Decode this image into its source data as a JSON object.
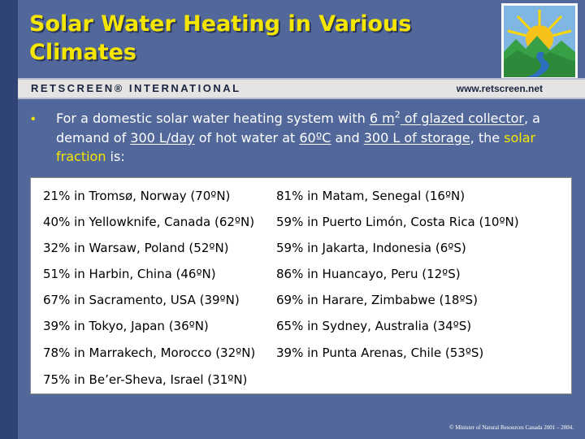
{
  "title": "Solar Water Heating in Various Climates",
  "header_band": {
    "brand": "RETSCREEN® INTERNATIONAL",
    "url": "www.retscreen.net"
  },
  "logo_icon": "sun-over-mountains-and-river-logo",
  "intro": {
    "t1": "For a domestic solar water heating system with ",
    "t2": "6 m",
    "t2_sup": "2",
    "t3": " of glazed collector",
    "t4": ", a demand of ",
    "t5": "300 L/day",
    "t6": " of hot water at ",
    "t7": "60ºC",
    "t8": " and ",
    "t9": "300 L of storage",
    "t10": ", the ",
    "t11": "solar fraction",
    "t12": " is:"
  },
  "results_left": [
    "21% in Tromsø, Norway (70ºN)",
    "40% in Yellowknife, Canada (62ºN)",
    "32% in Warsaw, Poland (52ºN)",
    "51% in Harbin, China (46ºN)",
    "67% in Sacramento, USA (39ºN)",
    "39% in Tokyo, Japan (36ºN)",
    "78% in Marrakech, Morocco (32ºN)",
    "75% in Be’er-Sheva, Israel (31ºN)"
  ],
  "results_right": [
    "81% in Matam, Senegal (16ºN)",
    "59% in Puerto Limón, Costa Rica (10ºN)",
    "59% in Jakarta, Indonesia (6ºS)",
    "86% in Huancayo, Peru (12ºS)",
    "69% in Harare, Zimbabwe (18ºS)",
    "65% in Sydney, Australia (34ºS)",
    "39% in Punta Arenas, Chile (53ºS)"
  ],
  "footer": "© Minister of Natural Resources Canada 2001 – 2004.",
  "colors": {
    "background": "#53689a",
    "title": "#f5e600",
    "left_strip": "#2f4475",
    "band": "#e4e4e4",
    "highlight": "#f5e600"
  }
}
